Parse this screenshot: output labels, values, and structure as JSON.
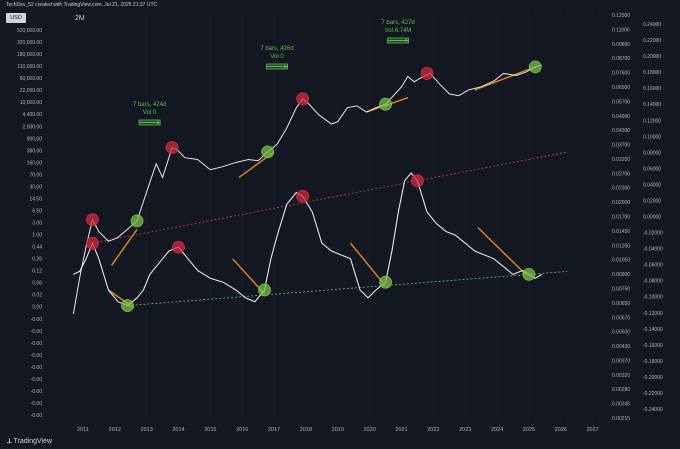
{
  "header": {
    "text": "TechDev_52 created with TradingView.com, Jul 21, 2025 21:37 UTC"
  },
  "badge": {
    "currency": "USD"
  },
  "timeframe": "2M",
  "footer": {
    "brand": "TradingView"
  },
  "colors": {
    "bg": "#131722",
    "price_line": "#e6e6e6",
    "trend_orange": "#e08a1e",
    "top_circle": "#d02c3c",
    "bottom_circle": "#79c04a",
    "annotation_green": "#57c24a",
    "trend_red_dash": "#c0494e",
    "trend_green_dash": "#6cc24a"
  },
  "chart_data": {
    "type": "line",
    "title": "",
    "x_ticks": [
      "2011",
      "2012",
      "2013",
      "2014",
      "2015",
      "2016",
      "2017",
      "2018",
      "2019",
      "2020",
      "2021",
      "2022",
      "2023",
      "2024",
      "2025",
      "2026",
      "2027"
    ],
    "left_axis_ticks": [
      "520,000.00",
      "320,000.00",
      "180,000.00",
      "110,000.00",
      "60,000.00",
      "22,000.00",
      "10,000.00",
      "4,400.00",
      "2,000.00",
      "900.00",
      "380.00",
      "160.00",
      "70.00",
      "30.00",
      "14.50",
      "6.50",
      "3.00",
      "1.00",
      "0.44",
      "0.26",
      "0.12",
      "0.06",
      "0.02",
      "0.00",
      "-0.00",
      "-0.00",
      "-0.00",
      "-0.00",
      "-0.00",
      "-0.00",
      "-0.00",
      "-0.00",
      "-0.00"
    ],
    "right_axis_1_ticks": [
      "0.12500",
      "0.11000",
      "0.09800",
      "0.08700",
      "0.07600",
      "0.06500",
      "0.05700",
      "0.04900",
      "0.04300",
      "0.03700",
      "0.03200",
      "0.02700",
      "0.02300",
      "0.02000",
      "0.01700",
      "0.01450",
      "0.01250",
      "0.01050",
      "0.00900",
      "0.00750",
      "0.00650",
      "0.00570",
      "0.00500",
      "0.00430",
      "0.00370",
      "0.00320",
      "0.00280",
      "0.00245",
      "0.00215"
    ],
    "right_axis_2_ticks": [
      "0.24000",
      "0.22000",
      "0.20000",
      "0.18000",
      "0.16000",
      "0.14000",
      "0.12000",
      "0.10000",
      "0.08000",
      "0.06000",
      "0.04000",
      "0.02000",
      "0.00000",
      "-0.02000",
      "-0.04000",
      "-0.06000",
      "-0.08000",
      "-0.10000",
      "-0.12000",
      "-0.14000",
      "-0.16000",
      "-0.18000",
      "-0.20000",
      "-0.22000",
      "-0.24000"
    ],
    "price_series": {
      "x": [
        2010.7,
        2010.9,
        2011.1,
        2011.3,
        2011.5,
        2011.8,
        2012.1,
        2012.4,
        2012.7,
        2012.9,
        2013.1,
        2013.3,
        2013.5,
        2013.8,
        2013.95,
        2014.2,
        2014.6,
        2015.0,
        2015.4,
        2015.8,
        2016.2,
        2016.5,
        2016.8,
        2017.1,
        2017.4,
        2017.7,
        2017.9,
        2018.1,
        2018.4,
        2018.8,
        2019.0,
        2019.3,
        2019.6,
        2019.9,
        2020.2,
        2020.5,
        2020.8,
        2021.0,
        2021.2,
        2021.4,
        2021.6,
        2021.8,
        2021.9,
        2022.2,
        2022.5,
        2022.8,
        2023.1,
        2023.5,
        2023.9,
        2024.2,
        2024.6,
        2024.9,
        2025.2,
        2025.4
      ],
      "y": [
        0.06,
        0.5,
        3,
        14,
        7,
        4,
        5,
        8,
        13,
        40,
        120,
        350,
        160,
        900,
        800,
        500,
        450,
        250,
        300,
        380,
        450,
        420,
        700,
        1100,
        2800,
        9000,
        15000,
        11000,
        6000,
        3500,
        4000,
        9000,
        10000,
        7000,
        9000,
        11000,
        20000,
        30000,
        55000,
        40000,
        50000,
        60000,
        65000,
        35000,
        20000,
        18000,
        25000,
        30000,
        42000,
        65000,
        58000,
        70000,
        95000,
        105000
      ]
    },
    "oscillator_series": {
      "x": [
        2010.7,
        2010.9,
        2011.1,
        2011.3,
        2011.5,
        2011.8,
        2012.1,
        2012.4,
        2012.7,
        2012.9,
        2013.1,
        2013.4,
        2013.7,
        2014.0,
        2014.3,
        2014.6,
        2015.0,
        2015.4,
        2015.8,
        2016.1,
        2016.4,
        2016.7,
        2016.9,
        2017.1,
        2017.4,
        2017.7,
        2017.9,
        2018.2,
        2018.5,
        2018.8,
        2019.1,
        2019.4,
        2019.7,
        2019.95,
        2020.2,
        2020.5,
        2020.7,
        2020.9,
        2021.1,
        2021.3,
        2021.5,
        2021.8,
        2022.1,
        2022.4,
        2022.7,
        2023.0,
        2023.3,
        2023.6,
        2023.9,
        2024.2,
        2024.5,
        2024.8,
        2025.0,
        2025.2,
        2025.4
      ],
      "y": [
        -0.08,
        -0.076,
        -0.06,
        -0.04,
        -0.06,
        -0.1,
        -0.115,
        -0.12,
        -0.11,
        -0.1,
        -0.08,
        -0.065,
        -0.05,
        -0.045,
        -0.06,
        -0.075,
        -0.085,
        -0.09,
        -0.1,
        -0.11,
        -0.115,
        -0.1,
        -0.06,
        -0.03,
        0.01,
        0.025,
        0.02,
        0.0,
        -0.04,
        -0.05,
        -0.055,
        -0.06,
        -0.1,
        -0.11,
        -0.1,
        -0.09,
        -0.05,
        0.0,
        0.04,
        0.05,
        0.04,
        0.0,
        -0.015,
        -0.025,
        -0.03,
        -0.04,
        -0.05,
        -0.055,
        -0.06,
        -0.07,
        -0.08,
        -0.075,
        -0.08,
        -0.085,
        -0.08
      ]
    },
    "tops_price": [
      [
        2011.3,
        14
      ],
      [
        2013.8,
        900
      ],
      [
        2017.9,
        15000
      ],
      [
        2021.8,
        65000
      ]
    ],
    "bottoms_price": [
      [
        2012.7,
        13
      ],
      [
        2016.8,
        700
      ],
      [
        2020.5,
        11000
      ],
      [
        2025.2,
        95000
      ]
    ],
    "tops_osc": [
      [
        2011.3,
        -0.04
      ],
      [
        2014.0,
        -0.045
      ],
      [
        2017.9,
        0.02
      ],
      [
        2021.5,
        0.04
      ]
    ],
    "bottoms_osc": [
      [
        2012.4,
        -0.12
      ],
      [
        2016.7,
        -0.1
      ],
      [
        2020.5,
        -0.09
      ],
      [
        2025.0,
        -0.08
      ]
    ],
    "annotations": [
      {
        "line1": "7 bars, 424d",
        "line2": "Vol 0",
        "x0": 2012.7,
        "x1": 2013.9
      },
      {
        "line1": "7 bars, 426d",
        "line2": "Vol 0",
        "x0": 2016.7,
        "x1": 2017.9
      },
      {
        "line1": "7 bars, 427d",
        "line2": "Vol 6.74M",
        "x0": 2020.5,
        "x1": 2021.7
      }
    ]
  }
}
